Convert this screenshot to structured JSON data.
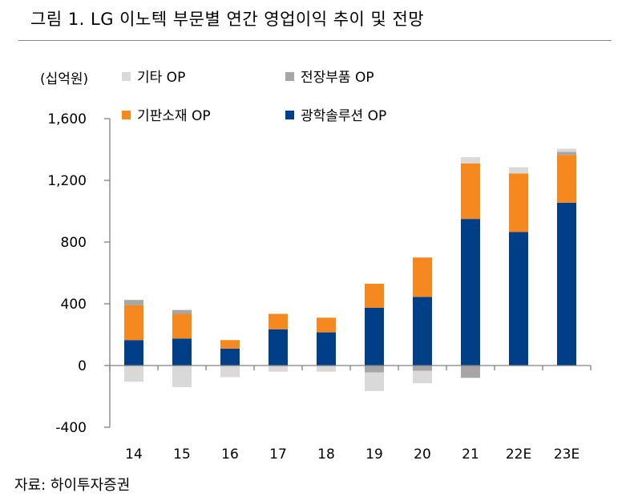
{
  "title": "그림 1. LG 이노텍 부문별 연간 영업이익 추이 및 전망",
  "source": "자료: 하이투자증권",
  "chart_data": {
    "type": "bar",
    "stacked": true,
    "unit_label": "(십억원)",
    "categories": [
      "14",
      "15",
      "16",
      "17",
      "18",
      "19",
      "20",
      "21",
      "22E",
      "23E"
    ],
    "series": [
      {
        "name": "광학솔루션 OP",
        "color": "#003f87",
        "values": [
          165,
          175,
          110,
          235,
          215,
          375,
          445,
          950,
          865,
          1055
        ]
      },
      {
        "name": "기판소재 OP",
        "color": "#f5891f",
        "values": [
          225,
          160,
          55,
          100,
          95,
          155,
          255,
          360,
          380,
          310
        ]
      },
      {
        "name": "전장부품 OP",
        "color": "#a6a6a6",
        "values": [
          35,
          25,
          0,
          0,
          0,
          -45,
          -35,
          -80,
          0,
          20
        ]
      },
      {
        "name": "기타 OP",
        "color": "#d9d9d9",
        "values": [
          -105,
          -140,
          -75,
          -40,
          -40,
          -120,
          -80,
          40,
          40,
          20
        ]
      }
    ],
    "ylim": [
      -400,
      1600
    ],
    "yticks": [
      -400,
      0,
      400,
      800,
      1200,
      1600
    ],
    "ytick_labels": [
      "-400",
      "0",
      "400",
      "800",
      "1,200",
      "1,600"
    ],
    "legend": {
      "placement": "top-left",
      "order": [
        "기타 OP",
        "전장부품 OP",
        "기판소재 OP",
        "광학솔루션 OP"
      ]
    },
    "grid": false
  }
}
